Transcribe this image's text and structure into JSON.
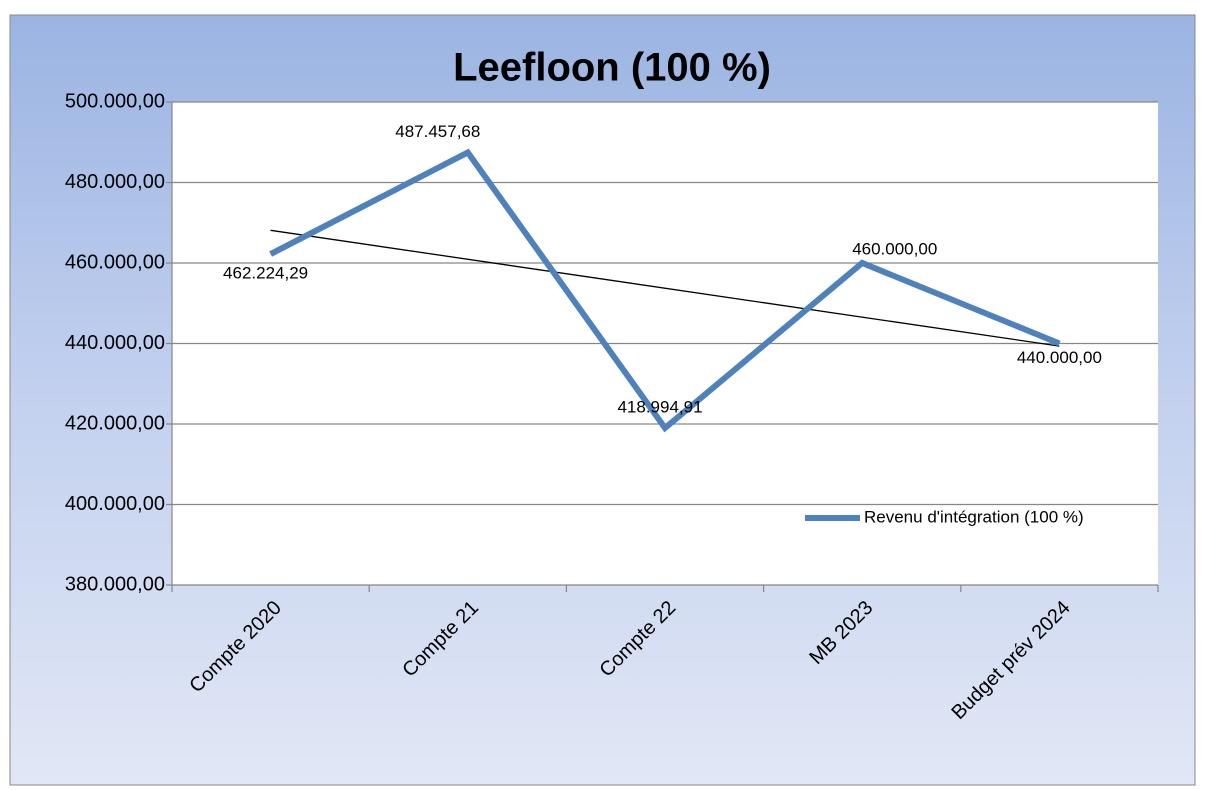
{
  "chart_data": {
    "type": "line",
    "title": "Leefloon (100 %)",
    "categories": [
      "Compte 2020",
      "Compte 21",
      "Compte 22",
      "MB 2023",
      "Budget prév 2024"
    ],
    "series": [
      {
        "name": "Revenu d'intégration (100 %)",
        "color": "#4f81bd",
        "values": [
          462224.29,
          487457.68,
          418994.91,
          460000,
          440000
        ],
        "value_labels": [
          "462.224,29",
          "487.457,68",
          "418.994,91",
          "460.000,00",
          "440.000,00"
        ]
      }
    ],
    "ylim": [
      380000,
      500000
    ],
    "yticks": [
      {
        "value": 380000,
        "label": "380.000,00"
      },
      {
        "value": 400000,
        "label": "400.000,00"
      },
      {
        "value": 420000,
        "label": "420.000,00"
      },
      {
        "value": 440000,
        "label": "440.000,00"
      },
      {
        "value": 460000,
        "label": "460.000,00"
      },
      {
        "value": 480000,
        "label": "480.000,00"
      },
      {
        "value": 500000,
        "label": "500.000,00"
      }
    ],
    "grid": true,
    "trendline": true,
    "legend": "lower right"
  }
}
